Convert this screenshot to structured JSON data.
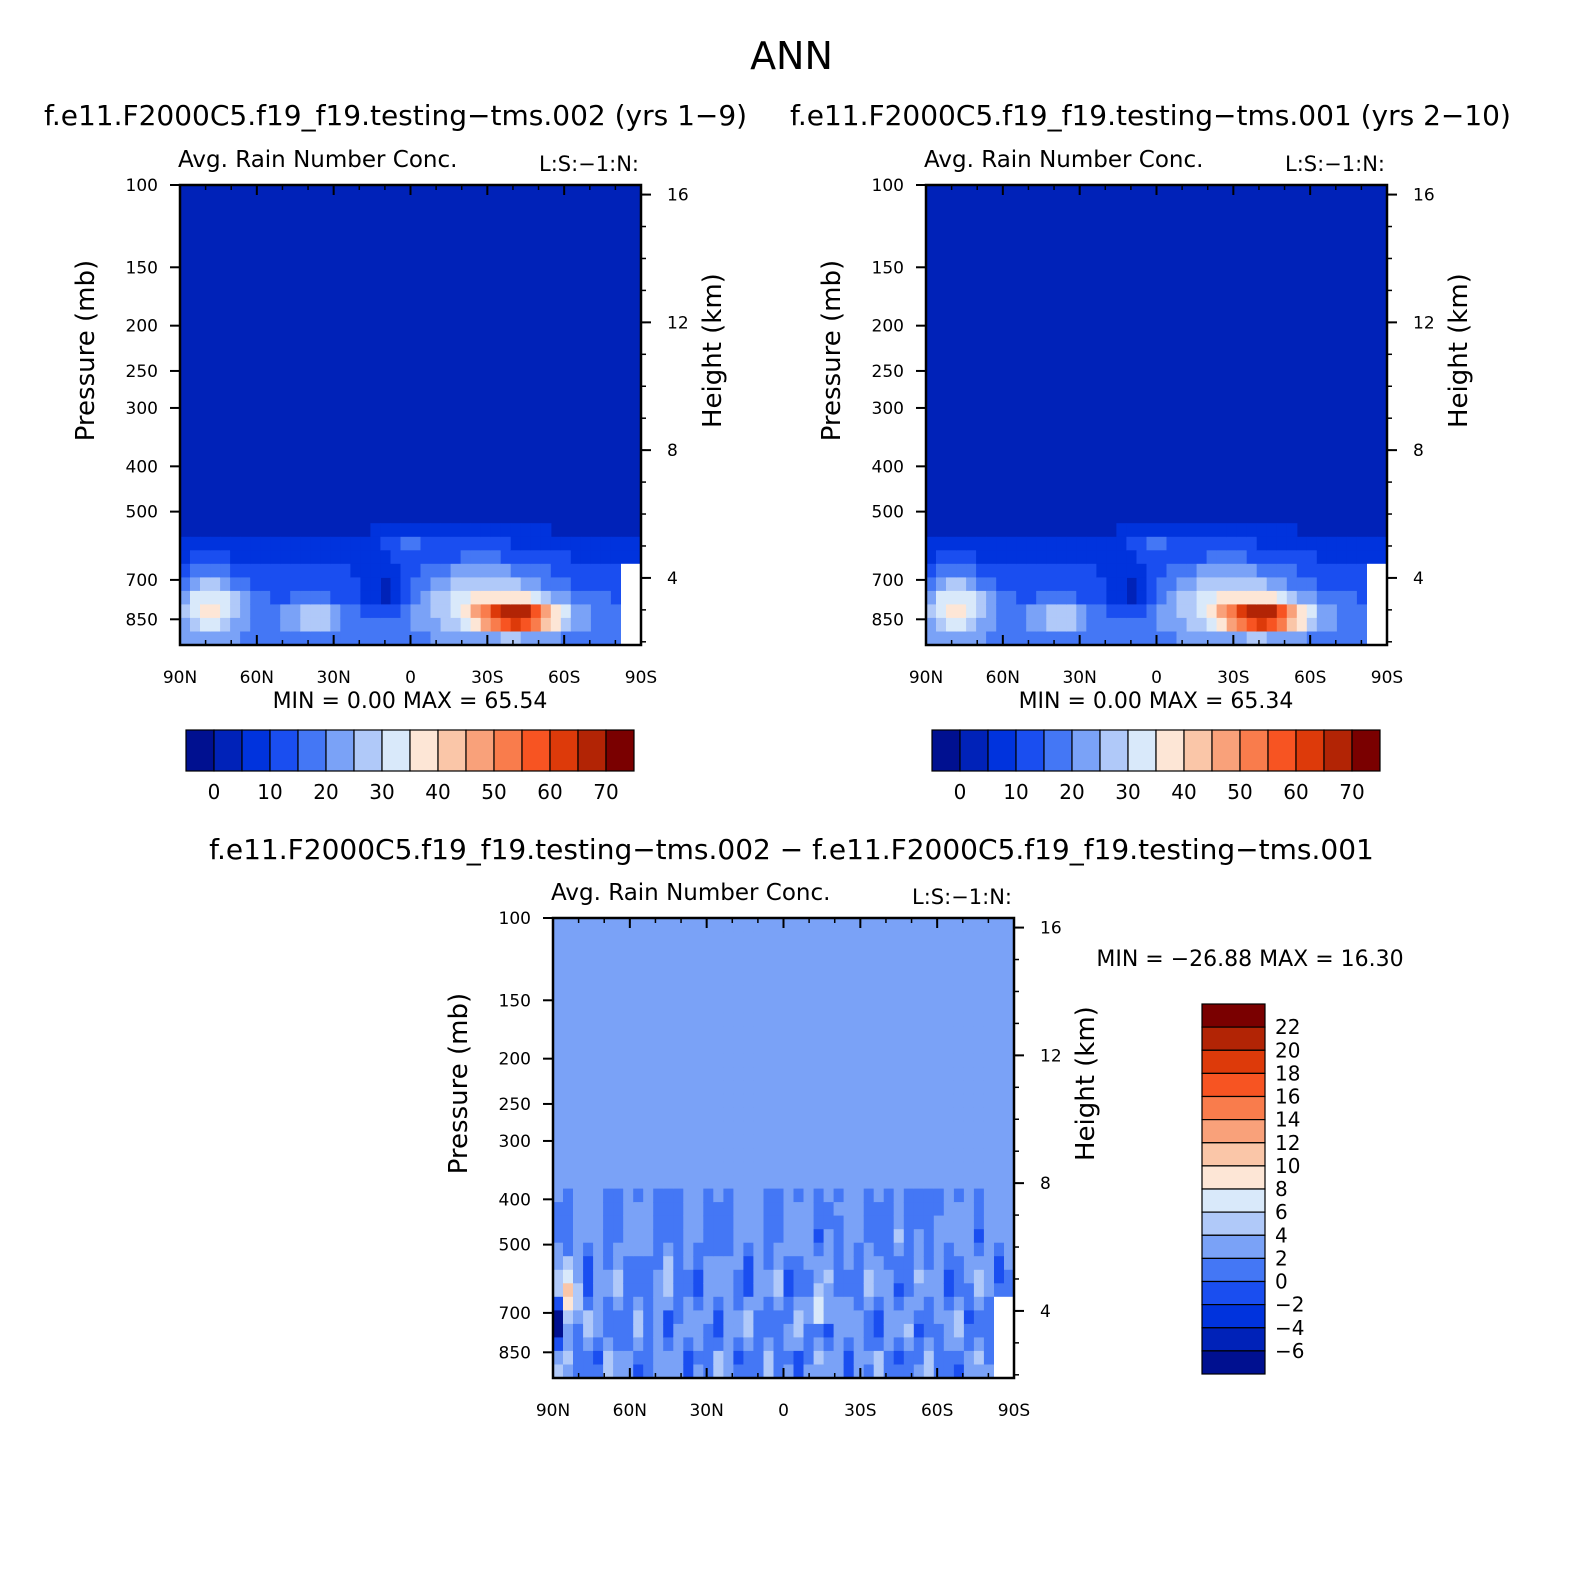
{
  "page": {
    "title": "ANN",
    "left_case_title": "f.e11.F2000C5.f19_f19.testing−tms.002 (yrs 1−9)",
    "right_case_title": "f.e11.F2000C5.f19_f19.testing−tms.001 (yrs 2−10)",
    "diff_title": "f.e11.F2000C5.f19_f19.testing−tms.002 − f.e11.F2000C5.f19_f19.testing−tms.001"
  },
  "chart_data": [
    {
      "id": "case1",
      "type": "heatmap",
      "title": "Avg. Rain Number Conc.",
      "subtitle": "L:S:−1:N:",
      "ylabel": "Pressure (mb)",
      "y2label": "Height (km)",
      "xticks": [
        "90N",
        "60N",
        "30N",
        "0",
        "30S",
        "60S",
        "90S"
      ],
      "yticks": [
        100,
        150,
        200,
        250,
        300,
        400,
        500,
        700,
        850
      ],
      "y2ticks": [
        16,
        12,
        8,
        4
      ],
      "min_label": "MIN =",
      "min_value": "0.00",
      "max_label": "MAX =",
      "max_value": "65.54",
      "colorbar": {
        "orientation": "horizontal",
        "labels": [
          "0",
          "10",
          "20",
          "30",
          "40",
          "50",
          "60",
          "70"
        ],
        "colors": [
          "#001090",
          "#0022b8",
          "#0033dd",
          "#1a4ef0",
          "#4477f5",
          "#7aa2f7",
          "#b0c9f9",
          "#d9e9fa",
          "#fde6d6",
          "#fac6a8",
          "#f9a17a",
          "#f97c4c",
          "#f75422",
          "#dd3a0a",
          "#b22405",
          "#7a0000"
        ]
      },
      "background_color": "#0022b8"
    },
    {
      "id": "case2",
      "type": "heatmap",
      "title": "Avg. Rain Number Conc.",
      "subtitle": "L:S:−1:N:",
      "ylabel": "Pressure (mb)",
      "y2label": "Height (km)",
      "xticks": [
        "90N",
        "60N",
        "30N",
        "0",
        "30S",
        "60S",
        "90S"
      ],
      "yticks": [
        100,
        150,
        200,
        250,
        300,
        400,
        500,
        700,
        850
      ],
      "y2ticks": [
        16,
        12,
        8,
        4
      ],
      "min_label": "MIN =",
      "min_value": "0.00",
      "max_label": "MAX =",
      "max_value": "65.34",
      "colorbar": {
        "orientation": "horizontal",
        "labels": [
          "0",
          "10",
          "20",
          "30",
          "40",
          "50",
          "60",
          "70"
        ],
        "colors": [
          "#001090",
          "#0022b8",
          "#0033dd",
          "#1a4ef0",
          "#4477f5",
          "#7aa2f7",
          "#b0c9f9",
          "#d9e9fa",
          "#fde6d6",
          "#fac6a8",
          "#f9a17a",
          "#f97c4c",
          "#f75422",
          "#dd3a0a",
          "#b22405",
          "#7a0000"
        ]
      },
      "background_color": "#0022b8"
    },
    {
      "id": "diff",
      "type": "heatmap",
      "title": "Avg. Rain Number Conc.",
      "subtitle": "L:S:−1:N:",
      "ylabel": "Pressure (mb)",
      "y2label": "Height (km)",
      "xticks": [
        "90N",
        "60N",
        "30N",
        "0",
        "30S",
        "60S",
        "90S"
      ],
      "yticks": [
        100,
        150,
        200,
        250,
        300,
        400,
        500,
        700,
        850
      ],
      "y2ticks": [
        16,
        12,
        8,
        4
      ],
      "min_label": "MIN =",
      "min_value": "−26.88",
      "max_label": "MAX =",
      "max_value": "16.30",
      "colorbar": {
        "orientation": "vertical",
        "labels": [
          "22",
          "20",
          "18",
          "16",
          "14",
          "12",
          "10",
          "8",
          "6",
          "4",
          "2",
          "0",
          "−2",
          "−4",
          "−6"
        ],
        "colors": [
          "#7a0000",
          "#b22405",
          "#dd3a0a",
          "#f75422",
          "#f97c4c",
          "#f9a17a",
          "#fac6a8",
          "#fde6d6",
          "#d9e9fa",
          "#b0c9f9",
          "#7aa2f7",
          "#4477f5",
          "#1a4ef0",
          "#0033dd",
          "#0022b8",
          "#001090"
        ]
      },
      "background_color": "#4477f5"
    }
  ]
}
